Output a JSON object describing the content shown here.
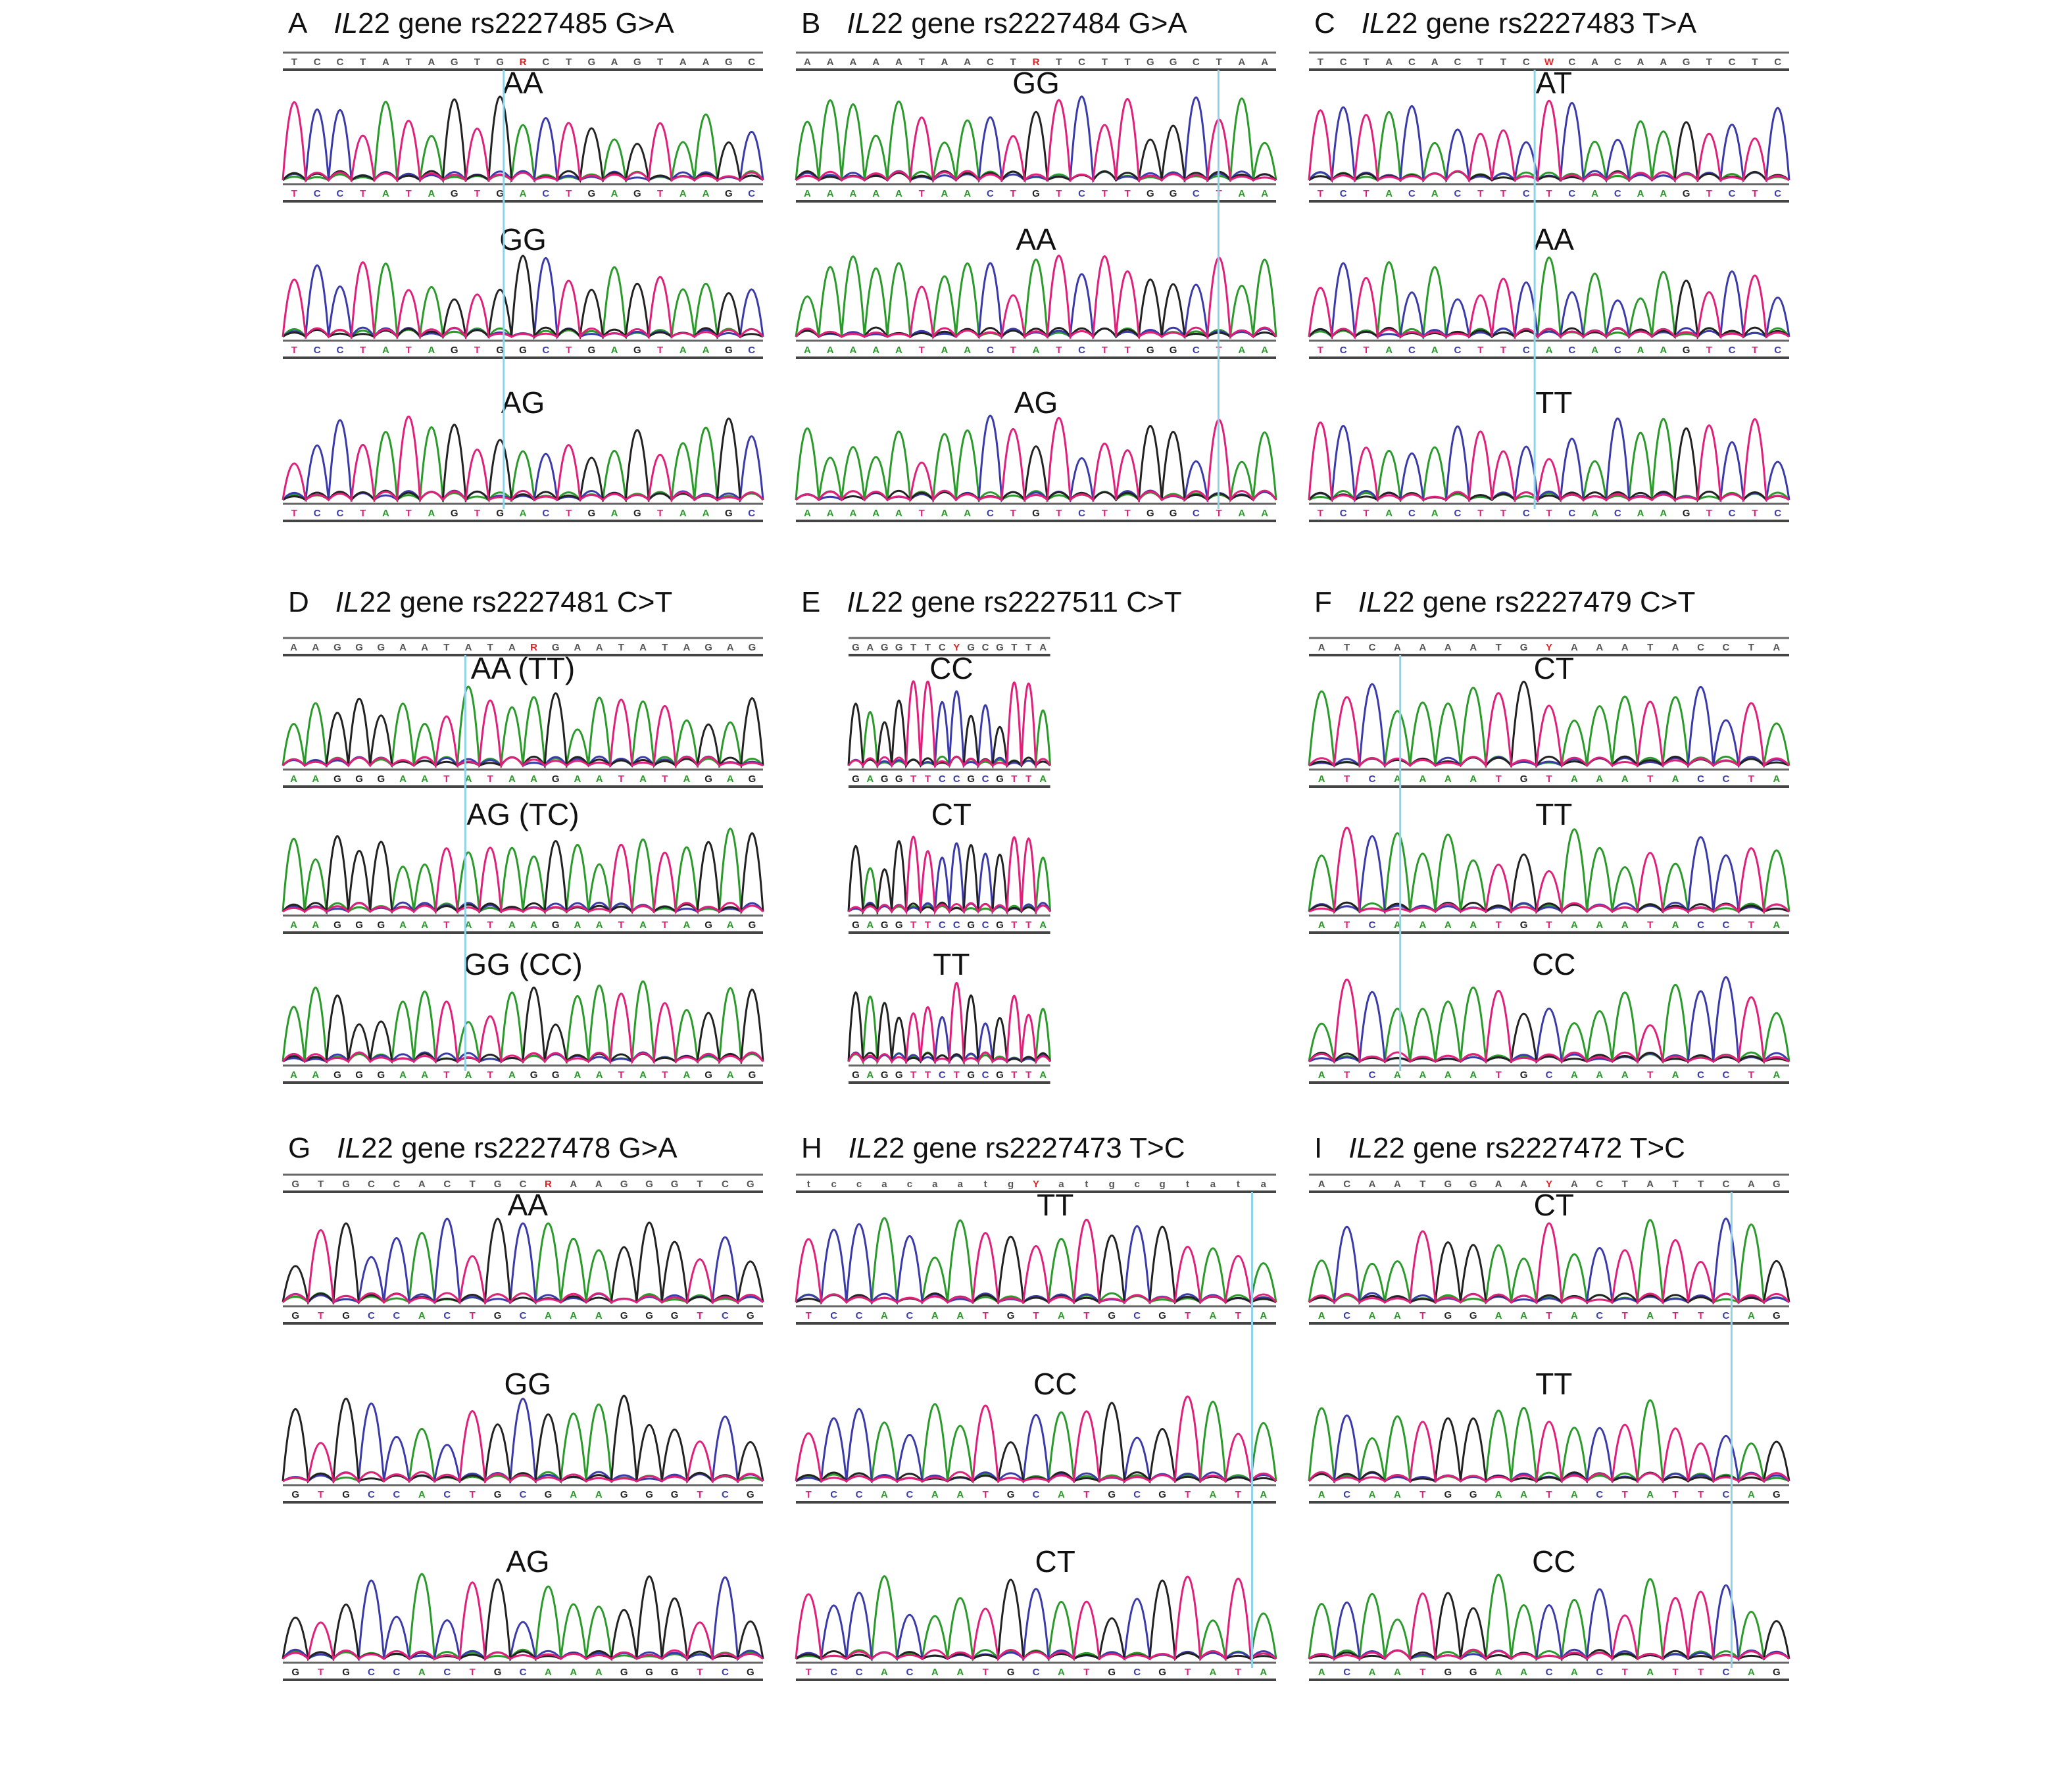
{
  "colors": {
    "A": "#2a9a2a",
    "C": "#3a3aaa",
    "G": "#222222",
    "T": "#e0207a",
    "R": "#dd2222",
    "cursor": "#8fd3e8"
  },
  "panels": [
    {
      "letter": "A",
      "gene": "IL",
      "rest": "22 gene rs2227485 G>A",
      "ref": "TCCTATAGTGRCTGAGTAAGC",
      "traces": [
        {
          "label": "AA",
          "seq": "TCCTATAGTGACTGAGTAAGC"
        },
        {
          "label": "GG",
          "seq": "TCCTATAGTGGCTGAGTAAGC"
        },
        {
          "label": "AG",
          "seq": "TCCTATAGTGACTGAGTAAGC"
        }
      ]
    },
    {
      "letter": "B",
      "gene": "IL",
      "rest": "22 gene rs2227484 G>A",
      "ref": "AAAAATAACTRTCTTGGCTAA",
      "traces": [
        {
          "label": "GG",
          "seq": "AAAAATAACTGTCTTGGCTAA"
        },
        {
          "label": "AA",
          "seq": "AAAAATAACTATCTTGGCTAA"
        },
        {
          "label": "AG",
          "seq": "AAAAATAACTGTCTTGGCTAA"
        }
      ]
    },
    {
      "letter": "C",
      "gene": "IL",
      "rest": "22 gene rs2227483 T>A",
      "ref": "TCTACACTTCWCACAAGTCTC",
      "traces": [
        {
          "label": "AT",
          "seq": "TCTACACTTCTCACAAGTCTC"
        },
        {
          "label": "AA",
          "seq": "TCTACACTTCACACAAGTCTC"
        },
        {
          "label": "TT",
          "seq": "TCTACACTTCTCACAAGTCTC"
        }
      ]
    },
    {
      "letter": "D",
      "gene": "IL",
      "rest": "22 gene rs2227481 C>T",
      "ref": "AAGGGAATATARGAATATAGAG",
      "traces": [
        {
          "label": "AA (TT)",
          "seq": "AAGGGAATATAAGAATATAGAG"
        },
        {
          "label": "AG (TC)",
          "seq": "AAGGGAATATAAGAATATAGAG"
        },
        {
          "label": "GG (CC)",
          "seq": "AAGGGAATATAGGAATATAGAG"
        }
      ]
    },
    {
      "letter": "E",
      "gene": "IL",
      "rest": "22 gene rs2227511 C>T",
      "ref": "GAGGTTCYGCGTTA",
      "traces": [
        {
          "label": "CC",
          "seq": "GAGGTTCCGCGTTA"
        },
        {
          "label": "CT",
          "seq": "GAGGTTCCGCGTTA"
        },
        {
          "label": "TT",
          "seq": "GAGGTTCTGCGTTA"
        }
      ]
    },
    {
      "letter": "F",
      "gene": "IL",
      "rest": "22 gene rs2227479 C>T",
      "ref": "ATCAAAATGYAAATACCTA",
      "traces": [
        {
          "label": "CT",
          "seq": "ATCAAAATGTAAATACCTA"
        },
        {
          "label": "TT",
          "seq": "ATCAAAATGTAAATACCTA"
        },
        {
          "label": "CC",
          "seq": "ATCAAAATGCAAATACCTA"
        }
      ]
    },
    {
      "letter": "G",
      "gene": "IL",
      "rest": "22 gene rs2227478 G>A",
      "ref": "GTGCCACTGCRAAGGGTCG",
      "traces": [
        {
          "label": "AA",
          "seq": "GTGCCACTGCAAAGGGTCG"
        },
        {
          "label": "GG",
          "seq": "GTGCCACTGCGAAGGGTCG"
        },
        {
          "label": "AG",
          "seq": "GTGCCACTGCAAAGGGTCG"
        }
      ]
    },
    {
      "letter": "H",
      "gene": "IL",
      "rest": "22 gene rs2227473 T>C",
      "ref": "tccacaatgYatgcgtata",
      "traces": [
        {
          "label": "TT",
          "seq": "TCCACAATGTATGCGTATA"
        },
        {
          "label": "CC",
          "seq": "TCCACAATGCATGCGTATA"
        },
        {
          "label": "CT",
          "seq": "TCCACAATGCATGCGTATA"
        }
      ]
    },
    {
      "letter": "I",
      "gene": "IL",
      "rest": "22 gene rs2227472 T>C",
      "ref": "ACAATGGAAYACTATTCAG",
      "traces": [
        {
          "label": "CT",
          "seq": "ACAATGGAATACTATTCAG"
        },
        {
          "label": "TT",
          "seq": "ACAATGGAATACTATTCAG"
        },
        {
          "label": "CC",
          "seq": "ACAATGGAACACTATTCAG"
        }
      ]
    }
  ]
}
